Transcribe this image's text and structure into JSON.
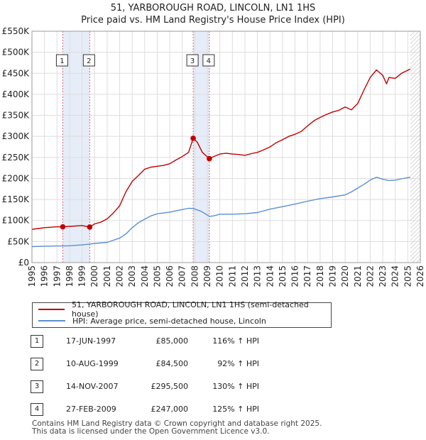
{
  "title_line1": "51, YARBOROUGH ROAD, LINCOLN, LN1 1HS",
  "title_line2": "Price paid vs. HM Land Registry's House Price Index (HPI)",
  "legend": {
    "property": "51, YARBOROUGH ROAD, LINCOLN, LN1 1HS (semi-detached house)",
    "hpi": "HPI: Average price, semi-detached house, Lincoln"
  },
  "colors": {
    "property": "#c00000",
    "hpi": "#5b8fd1",
    "shade": "#dce6f5",
    "grid": "#dddddd"
  },
  "sales": [
    {
      "num": "1",
      "date": "17-JUN-1997",
      "price": "£85,000",
      "hpi": "116% ↑ HPI"
    },
    {
      "num": "2",
      "date": "10-AUG-1999",
      "price": "£84,500",
      "hpi": "92% ↑ HPI"
    },
    {
      "num": "3",
      "date": "14-NOV-2007",
      "price": "£295,500",
      "hpi": "130% ↑ HPI"
    },
    {
      "num": "4",
      "date": "27-FEB-2009",
      "price": "£247,000",
      "hpi": "125% ↑ HPI"
    }
  ],
  "footer_line1": "Contains HM Land Registry data © Crown copyright and database right 2025.",
  "footer_line2": "This data is licensed under the Open Government Licence v3.0.",
  "chart_data": {
    "type": "line",
    "title": "51, YARBOROUGH ROAD, LINCOLN, LN1 1HS — Price paid vs. HM Land Registry's House Price Index (HPI)",
    "xlabel": "",
    "ylabel": "",
    "xlim": [
      1995,
      2026
    ],
    "ylim": [
      0,
      550000
    ],
    "x_ticks": [
      1995,
      1996,
      1997,
      1998,
      1999,
      2000,
      2001,
      2002,
      2003,
      2004,
      2005,
      2006,
      2007,
      2008,
      2009,
      2010,
      2011,
      2012,
      2013,
      2014,
      2015,
      2016,
      2017,
      2018,
      2019,
      2020,
      2021,
      2022,
      2023,
      2024,
      2025,
      2026
    ],
    "y_ticks": [
      {
        "value": 0,
        "label": "£0"
      },
      {
        "value": 50000,
        "label": "£50K"
      },
      {
        "value": 100000,
        "label": "£100K"
      },
      {
        "value": 150000,
        "label": "£150K"
      },
      {
        "value": 200000,
        "label": "£200K"
      },
      {
        "value": 250000,
        "label": "£250K"
      },
      {
        "value": 300000,
        "label": "£300K"
      },
      {
        "value": 350000,
        "label": "£350K"
      },
      {
        "value": 400000,
        "label": "£400K"
      },
      {
        "value": 450000,
        "label": "£450K"
      },
      {
        "value": 500000,
        "label": "£500K"
      },
      {
        "value": 550000,
        "label": "£550K"
      }
    ],
    "shaded_ranges": [
      [
        1997.46,
        1999.61
      ],
      [
        2007.87,
        2009.16
      ]
    ],
    "hatch_from": 2025.2,
    "series": [
      {
        "name": "51, YARBOROUGH ROAD, LINCOLN, LN1 1HS (semi-detached house)",
        "color": "#c00000",
        "x": [
          1995,
          1995.5,
          1996,
          1996.5,
          1997,
          1997.46,
          1998,
          1998.5,
          1999,
          1999.61,
          2000,
          2000.5,
          2001,
          2001.5,
          2002,
          2002.5,
          2003,
          2003.5,
          2004,
          2004.5,
          2005,
          2005.5,
          2006,
          2006.5,
          2007,
          2007.5,
          2007.87,
          2008.2,
          2008.6,
          2009.16,
          2009.5,
          2010,
          2010.5,
          2011,
          2011.5,
          2012,
          2012.5,
          2013,
          2013.5,
          2014,
          2014.5,
          2015,
          2015.5,
          2016,
          2016.5,
          2017,
          2017.5,
          2018,
          2018.5,
          2019,
          2019.5,
          2020,
          2020.5,
          2021,
          2021.5,
          2022,
          2022.5,
          2023,
          2023.3,
          2023.5,
          2024,
          2024.5,
          2025.2
        ],
        "values": [
          79000,
          81000,
          83000,
          84000,
          85000,
          85000,
          86000,
          87000,
          88000,
          84500,
          92000,
          96000,
          104000,
          118000,
          135000,
          168000,
          193000,
          207000,
          222000,
          227000,
          229000,
          231000,
          235000,
          244000,
          252000,
          262000,
          295500,
          286000,
          262000,
          247000,
          252000,
          258000,
          260000,
          258000,
          257000,
          255000,
          259000,
          262000,
          268000,
          275000,
          285000,
          292000,
          300000,
          305000,
          312000,
          325000,
          337000,
          345000,
          352000,
          358000,
          362000,
          370000,
          363000,
          378000,
          410000,
          440000,
          458000,
          445000,
          425000,
          440000,
          438000,
          450000,
          460000
        ]
      },
      {
        "name": "HPI: Average price, semi-detached house, Lincoln",
        "color": "#5b8fd1",
        "x": [
          1995,
          1996,
          1997,
          1997.46,
          1998,
          1999,
          1999.61,
          2000,
          2001,
          2002,
          2002.5,
          2003,
          2003.5,
          2004,
          2004.5,
          2005,
          2006,
          2007,
          2007.5,
          2007.87,
          2008.5,
          2009,
          2009.16,
          2009.5,
          2010,
          2011,
          2012,
          2013,
          2014,
          2015,
          2016,
          2017,
          2018,
          2019,
          2020,
          2020.5,
          2021,
          2021.5,
          2022,
          2022.5,
          2023,
          2023.5,
          2024,
          2024.5,
          2025.2
        ],
        "values": [
          38000,
          39000,
          39500,
          39500,
          40000,
          42000,
          44000,
          45500,
          48000,
          58000,
          68000,
          83000,
          95000,
          103000,
          111000,
          116000,
          120000,
          126000,
          129000,
          128500,
          122000,
          113000,
          110000,
          111000,
          115000,
          115000,
          116000,
          119000,
          127000,
          133000,
          139000,
          146000,
          152000,
          156000,
          161000,
          168000,
          177000,
          186000,
          196000,
          203000,
          198000,
          195000,
          196000,
          199000,
          203000
        ]
      }
    ],
    "sale_markers": [
      {
        "num": "1",
        "x": 1997.46,
        "y": 85000
      },
      {
        "num": "2",
        "x": 1999.61,
        "y": 84500
      },
      {
        "num": "3",
        "x": 2007.87,
        "y": 295500
      },
      {
        "num": "4",
        "x": 2009.16,
        "y": 247000
      }
    ]
  }
}
